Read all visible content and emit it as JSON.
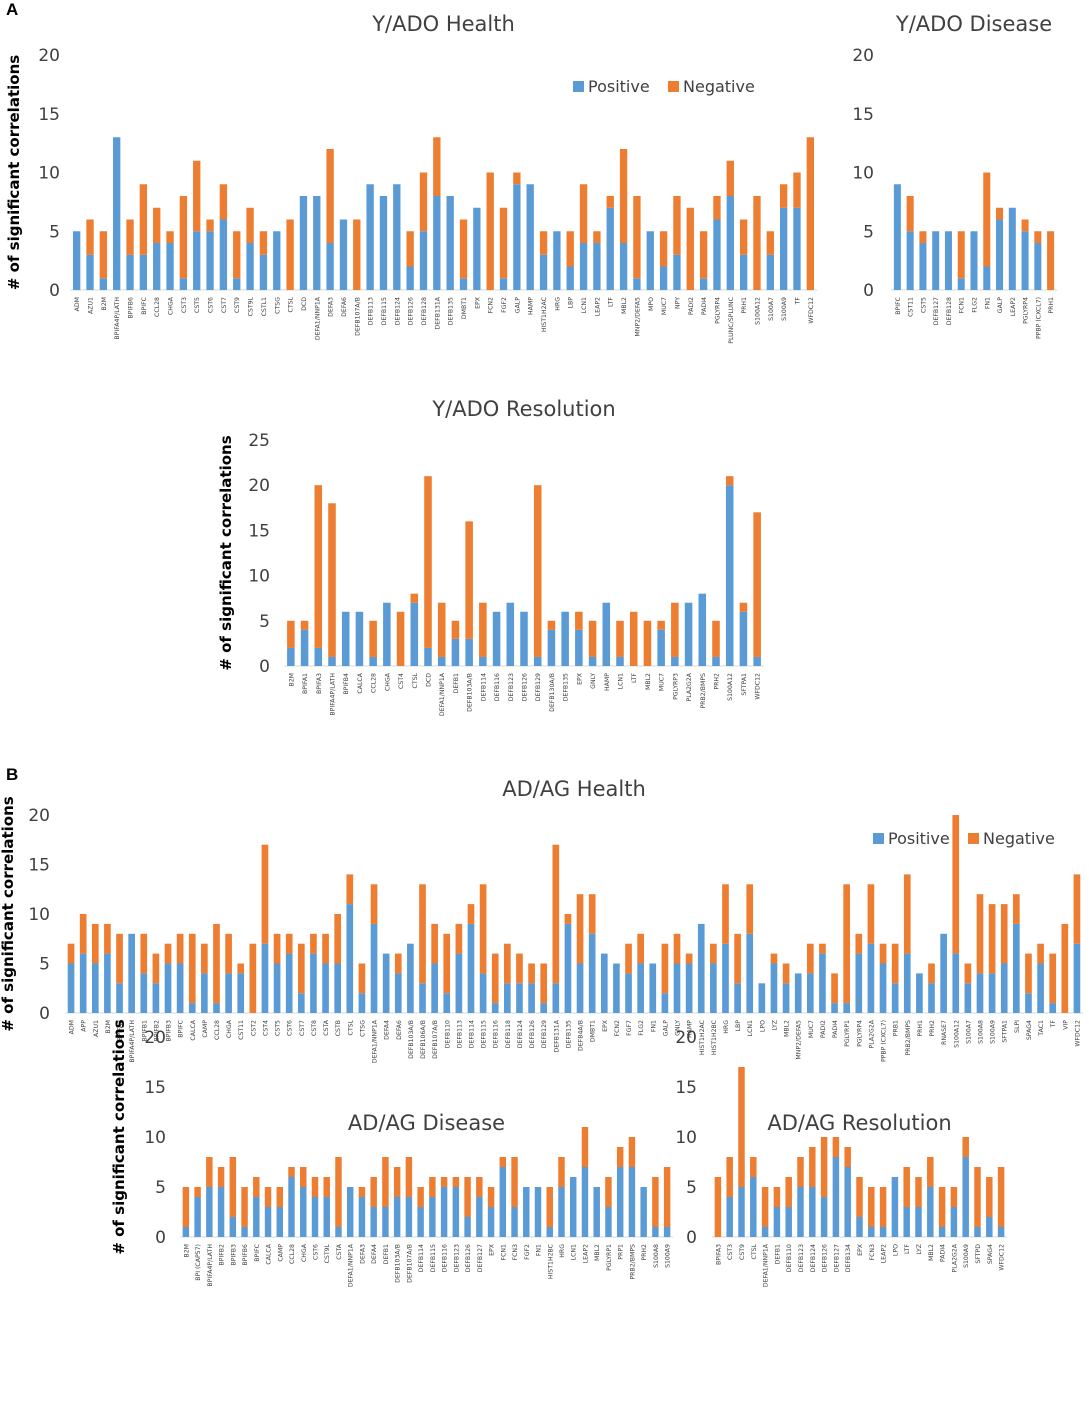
{
  "figure": {
    "panel_labels": [
      "A",
      "B"
    ],
    "ylabel": "# of significant correlations",
    "legend": {
      "positive": "Positive",
      "negative": "Negative"
    },
    "colors": {
      "positive": "#5b9bd5",
      "negative": "#ed7d31",
      "axis": "#d9d9d9",
      "text": "#404040"
    }
  },
  "chart_data": [
    {
      "type": "bar",
      "stacked": true,
      "title": "Y/ADO Health",
      "ylabel": "# of significant correlations",
      "ylim": [
        0,
        20
      ],
      "yticks": [
        0,
        5,
        10,
        15,
        20
      ],
      "legend": "top-right",
      "categories": [
        "ADM",
        "AZU1",
        "B2M",
        "BPIFA4P/LATH",
        "BPIFB6",
        "BPIFC",
        "CCL28",
        "CHGA",
        "CST3",
        "CST5",
        "CST6",
        "CST7",
        "CST9",
        "CST9L",
        "CSTL1",
        "CTSG",
        "CTSL",
        "DCD",
        "DEFA1/NNP1A",
        "DEFA3",
        "DEFA6",
        "DEFB107A/B",
        "DEFB113",
        "DEFB115",
        "DEFB124",
        "DEFB126",
        "DEFB128",
        "DEFB131A",
        "DEFB135",
        "DMBT1",
        "EPX",
        "FCN2",
        "FGF2",
        "GALP",
        "HAMP",
        "HIST1H2AC",
        "HRG",
        "LBP",
        "LCN1",
        "LEAP2",
        "LTF",
        "MBL2",
        "MNP2/DEFA5",
        "MPO",
        "MUC7",
        "NPY",
        "PADI2",
        "PADI4",
        "PGLYRP4",
        "PLUNC/SPLUNC",
        "PRH1",
        "S100A12",
        "S100A7",
        "S100A9",
        "TF",
        "WFDC12"
      ],
      "series": [
        {
          "name": "Positive",
          "values": [
            5,
            3,
            1,
            13,
            3,
            3,
            4,
            4,
            1,
            5,
            5,
            6,
            1,
            4,
            3,
            5,
            0,
            8,
            8,
            4,
            6,
            0,
            9,
            8,
            9,
            2,
            5,
            8,
            8,
            1,
            7,
            0,
            1,
            9,
            9,
            3,
            5,
            2,
            4,
            4,
            7,
            4,
            1,
            5,
            2,
            3,
            0,
            1,
            6,
            8,
            3,
            0,
            3,
            7,
            7,
            0
          ]
        },
        {
          "name": "Negative",
          "values": [
            0,
            3,
            4,
            0,
            3,
            6,
            3,
            1,
            7,
            6,
            1,
            3,
            4,
            3,
            2,
            0,
            6,
            0,
            0,
            8,
            0,
            6,
            0,
            0,
            0,
            3,
            5,
            5,
            0,
            5,
            0,
            10,
            6,
            1,
            0,
            2,
            0,
            3,
            5,
            1,
            1,
            8,
            7,
            0,
            3,
            5,
            7,
            4,
            2,
            3,
            3,
            8,
            2,
            2,
            3,
            13
          ]
        }
      ]
    },
    {
      "type": "bar",
      "stacked": true,
      "title": "Y/ADO Disease",
      "ylim": [
        0,
        20
      ],
      "yticks": [
        0,
        5,
        10,
        15,
        20
      ],
      "categories": [
        "BPIFC",
        "CST11",
        "CST5",
        "DEFB127",
        "DEFB128",
        "FCN1",
        "FLG2",
        "FN1",
        "GALP",
        "LEAP2",
        "PGLYRP4",
        "PPBP (CXCL7)",
        "PRH1"
      ],
      "series": [
        {
          "name": "Positive",
          "values": [
            9,
            5,
            4,
            5,
            5,
            1,
            5,
            2,
            6,
            7,
            5,
            4,
            0
          ]
        },
        {
          "name": "Negative",
          "values": [
            0,
            3,
            1,
            0,
            0,
            4,
            0,
            8,
            1,
            0,
            1,
            1,
            5
          ]
        }
      ]
    },
    {
      "type": "bar",
      "stacked": true,
      "title": "Y/ADO Resolution",
      "ylabel": "# of significant correlations",
      "ylim": [
        0,
        25
      ],
      "yticks": [
        0,
        5,
        10,
        15,
        20,
        25
      ],
      "categories": [
        "B2M",
        "BPIFA1",
        "BPIFA3",
        "BPIFA4P/LATH",
        "BPIFB4",
        "CALCA",
        "CCL28",
        "CHGA",
        "CST4",
        "CTSL",
        "DCD",
        "DEFA1/NNP1A",
        "DEFB1",
        "DEFB103A/B",
        "DEFB114",
        "DEFB116",
        "DEFB123",
        "DEFB126",
        "DEFB129",
        "DEFB130A/B",
        "DEFB135",
        "EPX",
        "GNLY",
        "HAMP",
        "LCN1",
        "LTF",
        "MBL2",
        "MUC7",
        "PGLYRP3",
        "PLA2G2A",
        "PRB2/BMPS",
        "PRH2",
        "S100A12",
        "SFTPA1",
        "WFDC12"
      ],
      "series": [
        {
          "name": "Positive",
          "values": [
            2,
            4,
            2,
            1,
            6,
            6,
            1,
            7,
            0,
            7,
            2,
            1,
            3,
            3,
            1,
            6,
            7,
            6,
            1,
            4,
            6,
            4,
            1,
            7,
            1,
            0,
            0,
            4,
            1,
            7,
            8,
            1,
            20,
            6,
            1
          ]
        },
        {
          "name": "Negative",
          "values": [
            3,
            1,
            18,
            17,
            0,
            0,
            4,
            0,
            6,
            1,
            19,
            6,
            2,
            13,
            6,
            0,
            0,
            0,
            19,
            1,
            0,
            2,
            4,
            0,
            4,
            6,
            5,
            1,
            6,
            0,
            0,
            4,
            1,
            1,
            16
          ]
        }
      ]
    },
    {
      "type": "bar",
      "stacked": true,
      "title": "AD/AG Health",
      "ylabel": "# of significant correlations",
      "ylim": [
        0,
        20
      ],
      "yticks": [
        0,
        5,
        10,
        15,
        20
      ],
      "legend": "top-right",
      "categories": [
        "ADM",
        "APP",
        "AZU1",
        "B2M",
        "BPIFA3",
        "BPIFA4P/LATH",
        "BPIFB1",
        "BPIFB2",
        "BPIFB3",
        "BPIFC",
        "CALCA",
        "CAMP",
        "CCL28",
        "CHGA",
        "CST11",
        "CST2",
        "CST4",
        "CST5",
        "CST6",
        "CST7",
        "CST8",
        "CSTA",
        "CSTB",
        "CTSL",
        "CTSG",
        "DEFA1/NNP1A",
        "DEFA4",
        "DEFA6",
        "DEFB103A/B",
        "DEFB106A/B",
        "DEFB107A/B",
        "DEFB110",
        "DEFB113",
        "DEFB114",
        "DEFB115",
        "DEFB116",
        "DEFB118",
        "DEFB124",
        "DEFB126",
        "DEFB129",
        "DEFB131A",
        "DEFB135",
        "DEFB4A/B",
        "DMBT1",
        "EPX",
        "FCN2",
        "FGF7",
        "FLG2",
        "FN1",
        "GALP",
        "GNLY",
        "HAMP",
        "HIST1H2AC",
        "HIST1H2BC",
        "HRG",
        "LBP",
        "LCN1",
        "LPO",
        "LYZ",
        "MBL2",
        "MNP2/DEFA5",
        "MUC7",
        "PADI2",
        "PADI4",
        "PGLYRP1",
        "PGLYRP4",
        "PLA2G2A",
        "PPBP (CXCL7)",
        "PRB1",
        "PRB2/BMPS",
        "PRH1",
        "PRH2",
        "RNASE7",
        "S100A12",
        "S100A7",
        "S100A8",
        "S100A9",
        "SFTPA1",
        "SLPI",
        "SPAG4",
        "TAC1",
        "TF",
        "VIP",
        "WFDC12"
      ],
      "series": [
        {
          "name": "Positive",
          "values": [
            5,
            6,
            5,
            6,
            3,
            8,
            4,
            3,
            5,
            5,
            1,
            4,
            1,
            4,
            4,
            0,
            7,
            5,
            6,
            2,
            6,
            5,
            5,
            11,
            2,
            9,
            6,
            4,
            7,
            3,
            5,
            2,
            6,
            9,
            4,
            1,
            3,
            3,
            3,
            1,
            3,
            9,
            5,
            8,
            6,
            5,
            4,
            5,
            5,
            2,
            5,
            5,
            9,
            5,
            7,
            3,
            8,
            3,
            5,
            3,
            4,
            4,
            6,
            1,
            1,
            6,
            7,
            5,
            3,
            6,
            4,
            3,
            8,
            6,
            3,
            4,
            4,
            5,
            9,
            2,
            5,
            1,
            0,
            7
          ]
        },
        {
          "name": "Negative",
          "values": [
            2,
            4,
            4,
            3,
            5,
            0,
            4,
            3,
            2,
            3,
            7,
            3,
            8,
            4,
            1,
            7,
            10,
            3,
            2,
            5,
            2,
            3,
            5,
            3,
            3,
            4,
            0,
            2,
            0,
            10,
            4,
            6,
            3,
            2,
            9,
            5,
            4,
            3,
            2,
            4,
            14,
            1,
            7,
            4,
            0,
            0,
            3,
            3,
            0,
            5,
            3,
            1,
            0,
            2,
            6,
            5,
            5,
            0,
            1,
            2,
            0,
            3,
            1,
            3,
            12,
            2,
            6,
            2,
            4,
            8,
            0,
            2,
            0,
            14,
            2,
            8,
            7,
            6,
            3,
            4,
            2,
            5,
            9,
            7
          ]
        }
      ]
    },
    {
      "type": "bar",
      "stacked": true,
      "title": "AD/AG Disease",
      "ylabel": "# of significant correlations",
      "ylim": [
        0,
        20
      ],
      "yticks": [
        0,
        5,
        10,
        15,
        20
      ],
      "categories": [
        "B2M",
        "BPI (CAP57)",
        "BPIFA4P/LATH",
        "BPIFB2",
        "BPIFB3",
        "BPIFB6",
        "BPIFC",
        "CALCA",
        "CAMP",
        "CCL28",
        "CHGA",
        "CST6",
        "CST9L",
        "CSTA",
        "DEFA1/NNP1A",
        "DEFA3",
        "DEFA4",
        "DEFB1",
        "DEFB103A/B",
        "DEFB107A/B",
        "DEFB114",
        "DEFB115",
        "DEFB116",
        "DEFB123",
        "DEFB126",
        "DEFB127",
        "EPX",
        "FCN1",
        "FCN3",
        "FGF2",
        "FN1",
        "HIST1H2BC",
        "HRG",
        "LCN1",
        "LEAP2",
        "MBL2",
        "PGLYRP1",
        "PRP1",
        "PRB2/BMPS",
        "PRH2",
        "S100A8",
        "S100A9"
      ],
      "series": [
        {
          "name": "Positive",
          "values": [
            1,
            4,
            5,
            5,
            2,
            1,
            4,
            3,
            3,
            6,
            5,
            4,
            4,
            1,
            5,
            4,
            3,
            3,
            4,
            4,
            3,
            4,
            5,
            5,
            2,
            4,
            3,
            7,
            3,
            5,
            5,
            1,
            5,
            6,
            7,
            5,
            3,
            7,
            7,
            5,
            1,
            1
          ]
        },
        {
          "name": "Negative",
          "values": [
            4,
            1,
            3,
            2,
            6,
            4,
            2,
            2,
            2,
            1,
            2,
            2,
            2,
            7,
            0,
            1,
            3,
            5,
            3,
            4,
            2,
            2,
            1,
            1,
            4,
            2,
            2,
            1,
            5,
            0,
            0,
            4,
            3,
            0,
            4,
            0,
            3,
            2,
            3,
            0,
            5,
            6
          ]
        }
      ]
    },
    {
      "type": "bar",
      "stacked": true,
      "title": "AD/AG Resolution",
      "ylim": [
        0,
        20
      ],
      "yticks": [
        0,
        5,
        10,
        15,
        20
      ],
      "categories": [
        "BPIFA3",
        "CST3",
        "CST9",
        "CTSL",
        "DEFA1/NNP1A",
        "DEFB1",
        "DEFB110",
        "DEFB123",
        "DEFB124",
        "DEFB126",
        "DEFB127",
        "DEFB134",
        "EPX",
        "FCN3",
        "LEAP2",
        "LPO",
        "LTF",
        "LYZ",
        "MBL2",
        "PADI4",
        "PLA2G2A",
        "S100A9",
        "SFTPD",
        "SPAG4",
        "WFDC12"
      ],
      "series": [
        {
          "name": "Positive",
          "values": [
            0,
            4,
            5,
            6,
            1,
            3,
            3,
            5,
            5,
            4,
            8,
            7,
            2,
            1,
            1,
            6,
            3,
            3,
            5,
            1,
            3,
            8,
            1,
            2,
            1
          ]
        },
        {
          "name": "Negative",
          "values": [
            6,
            4,
            12,
            2,
            4,
            2,
            3,
            3,
            4,
            6,
            2,
            2,
            4,
            4,
            4,
            0,
            4,
            3,
            3,
            4,
            2,
            2,
            6,
            4,
            6
          ]
        }
      ]
    }
  ]
}
